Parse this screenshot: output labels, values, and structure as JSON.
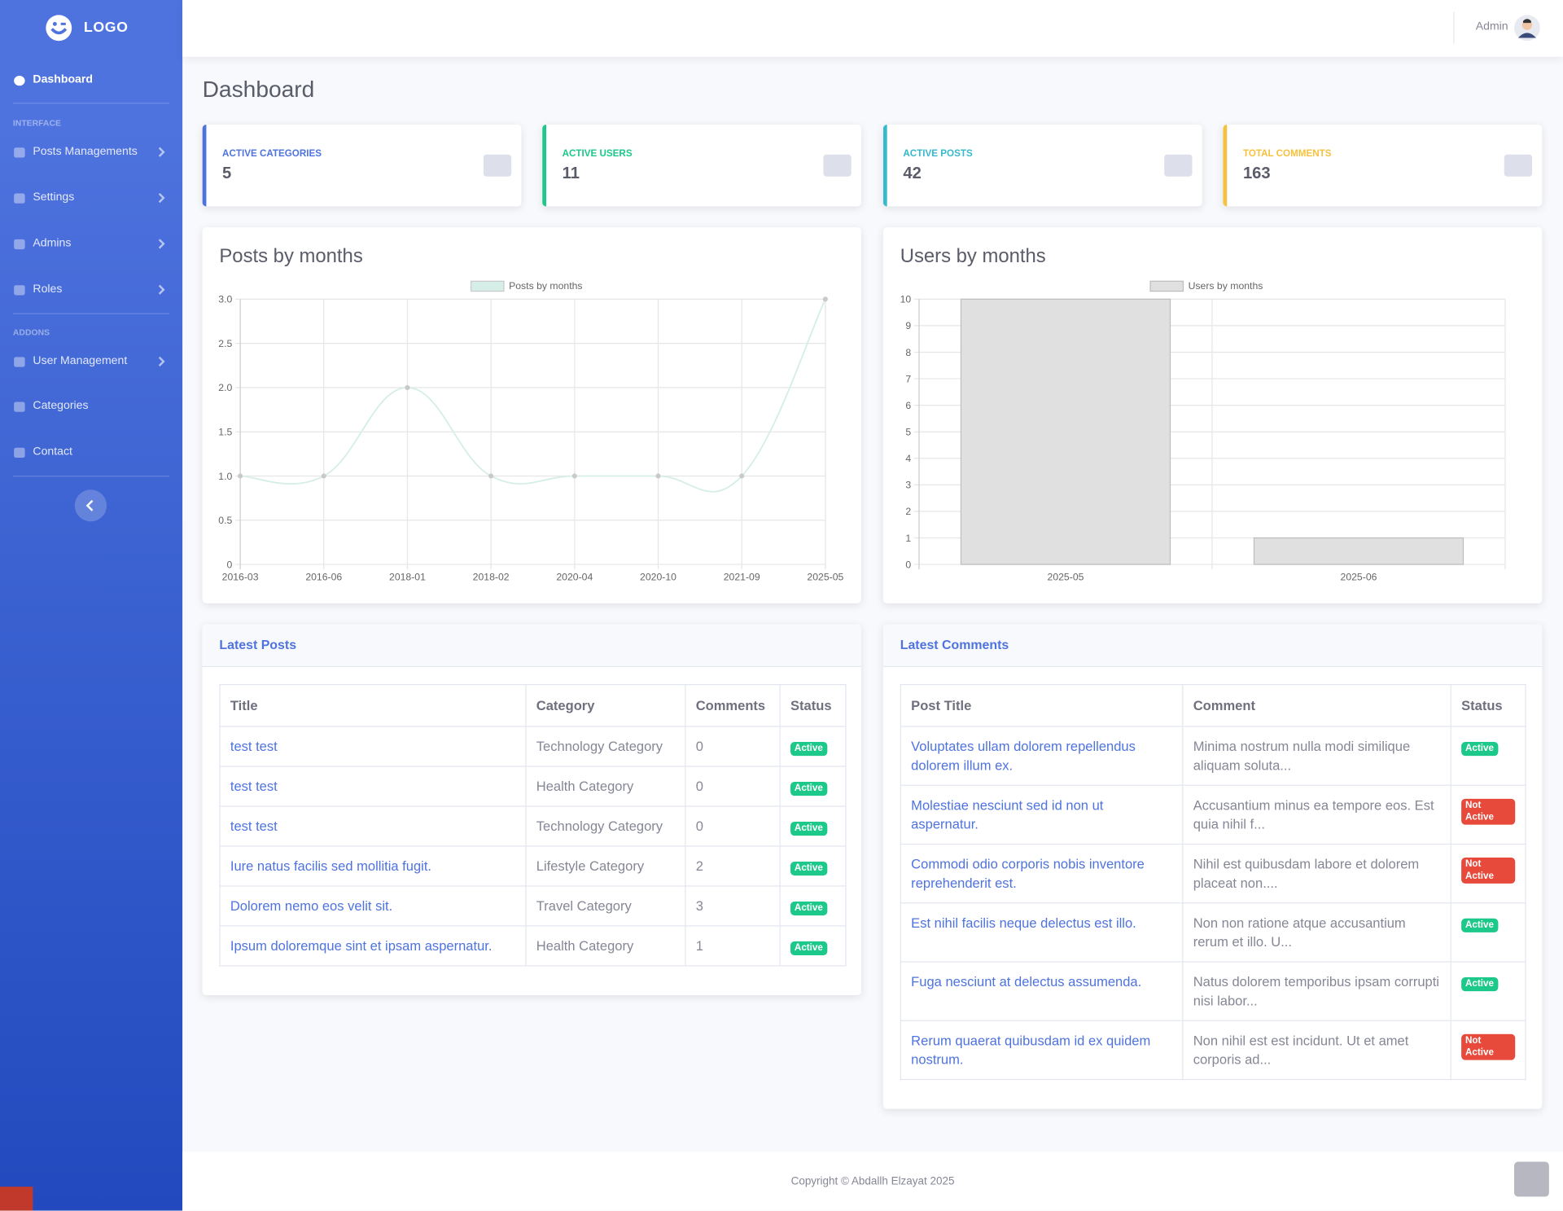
{
  "sidebar": {
    "logo": "LOGO",
    "menu": [
      {
        "label": "Dashboard",
        "active": true
      },
      {
        "heading": "INTERFACE"
      },
      {
        "label": "Posts Managements",
        "arrow": true
      },
      {
        "label": "Settings",
        "arrow": true
      },
      {
        "label": "Admins",
        "arrow": true
      },
      {
        "label": "Roles",
        "arrow": true
      },
      {
        "heading": "ADDONS"
      },
      {
        "label": "User Management",
        "arrow": true
      },
      {
        "label": "Categories"
      },
      {
        "label": "Contact"
      }
    ]
  },
  "topbar": {
    "user": "Admin"
  },
  "page_title": "Dashboard",
  "stat_cards": [
    {
      "label": "ACTIVE CATEGORIES",
      "value": 5,
      "color": "#4e73df"
    },
    {
      "label": "ACTIVE USERS",
      "value": 11,
      "color": "#1cc88a"
    },
    {
      "label": "ACTIVE POSTS",
      "value": 42,
      "color": "#36b9cc"
    },
    {
      "label": "TOTAL COMMENTS",
      "value": 163,
      "color": "#f6c23e"
    }
  ],
  "chart_data": [
    {
      "type": "line",
      "title": "Posts by months",
      "categories": [
        "2016-03",
        "2016-06",
        "2018-01",
        "2018-02",
        "2020-04",
        "2020-10",
        "2021-09",
        "2025-05"
      ],
      "series": [
        {
          "name": "Posts by months",
          "color": "#d6eee8",
          "point_color": "#c9c9c9",
          "values": [
            1,
            1,
            2,
            1,
            1,
            1,
            1,
            3
          ]
        }
      ],
      "ylim": [
        0,
        3
      ],
      "yticks": [
        0,
        0.5,
        {
          "value": 1,
          "label": "1.0"
        },
        1.5,
        {
          "value": 2,
          "label": "2.0"
        },
        2.5,
        {
          "value": 3,
          "label": "3.0"
        }
      ],
      "grid": true
    },
    {
      "type": "bar",
      "title": "Users by months",
      "categories": [
        "2025-05",
        "2025-06"
      ],
      "series": [
        {
          "name": "Users by months",
          "color": "#e0e0e0",
          "border_color": "#bdbdbd",
          "values": [
            10,
            1
          ]
        }
      ],
      "ylim": [
        0,
        10
      ],
      "yticks": [
        0,
        1,
        2,
        3,
        4,
        5,
        6,
        7,
        8,
        9,
        10
      ],
      "grid": true
    }
  ],
  "tables": {
    "posts": {
      "title": "Latest Posts",
      "columns": [
        "Title",
        "Category",
        "Comments",
        "Status"
      ],
      "rows": [
        {
          "title": "test test",
          "category": "Technology Category",
          "comments": 0,
          "status": {
            "label": "Active",
            "color": "#1cc88a"
          }
        },
        {
          "title": "test test",
          "category": "Health Category",
          "comments": 0,
          "status": {
            "label": "Active",
            "color": "#1cc88a"
          }
        },
        {
          "title": "test test",
          "category": "Technology Category",
          "comments": 0,
          "status": {
            "label": "Active",
            "color": "#1cc88a"
          }
        },
        {
          "title": "Iure natus facilis sed mollitia fugit.",
          "category": "Lifestyle Category",
          "comments": 2,
          "status": {
            "label": "Active",
            "color": "#1cc88a"
          }
        },
        {
          "title": "Dolorem nemo eos velit sit.",
          "category": "Travel Category",
          "comments": 3,
          "status": {
            "label": "Active",
            "color": "#1cc88a"
          }
        },
        {
          "title": "Ipsum doloremque sint et ipsam aspernatur.",
          "category": "Health Category",
          "comments": 1,
          "status": {
            "label": "Active",
            "color": "#1cc88a"
          }
        }
      ]
    },
    "comments": {
      "title": "Latest Comments",
      "columns": [
        "Post Title",
        "Comment",
        "Status"
      ],
      "rows": [
        {
          "post_title": "Voluptates ullam dolorem repellendus dolorem illum ex.",
          "comment": "Minima nostrum nulla modi similique aliquam soluta...",
          "status": {
            "label": "Active",
            "color": "#1cc88a"
          }
        },
        {
          "post_title": "Molestiae nesciunt sed id non ut aspernatur.",
          "comment": "Accusantium minus ea tempore eos. Est quia nihil f...",
          "status": {
            "label": "Not Active",
            "color": "#e74a3b"
          }
        },
        {
          "post_title": "Commodi odio corporis nobis inventore reprehenderit est.",
          "comment": "Nihil est quibusdam labore et dolorem placeat non....",
          "status": {
            "label": "Not Active",
            "color": "#e74a3b"
          }
        },
        {
          "post_title": "Est nihil facilis neque delectus est illo.",
          "comment": "Non non ratione atque accusantium rerum et illo. U...",
          "status": {
            "label": "Active",
            "color": "#1cc88a"
          }
        },
        {
          "post_title": "Fuga nesciunt at delectus assumenda.",
          "comment": "Natus dolorem temporibus ipsam corrupti nisi labor...",
          "status": {
            "label": "Active",
            "color": "#1cc88a"
          }
        },
        {
          "post_title": "Rerum quaerat quibusdam id ex quidem nostrum.",
          "comment": "Non nihil est est incidunt. Ut et amet corporis ad...",
          "status": {
            "label": "Not Active",
            "color": "#e74a3b"
          }
        }
      ]
    }
  },
  "footer": "Copyright © Abdallh Elzayat 2025"
}
